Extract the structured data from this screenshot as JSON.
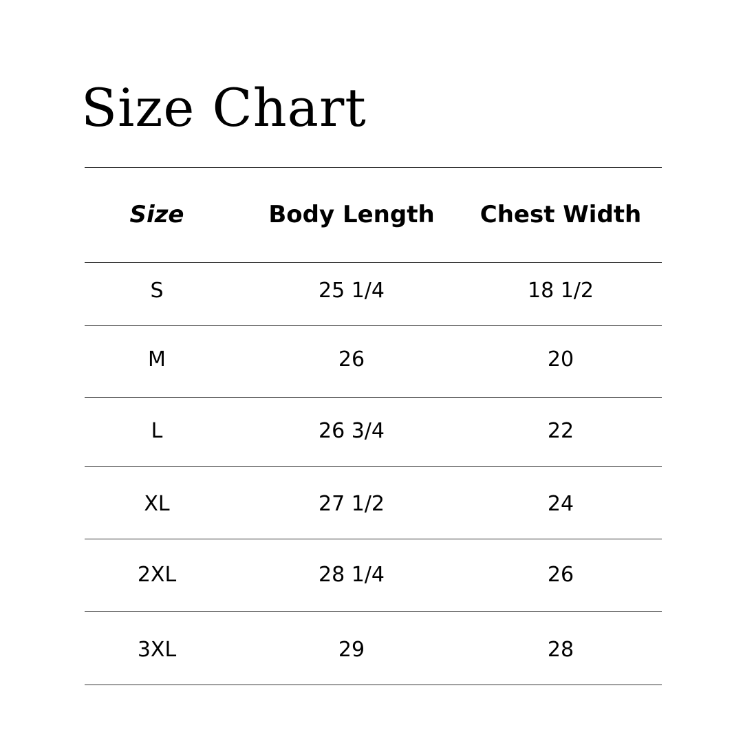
{
  "title": "Size Chart",
  "table": {
    "headers": [
      "Size",
      "Body Length",
      "Chest Width"
    ],
    "rows": [
      [
        "S",
        "25 1/4",
        "18 1/2"
      ],
      [
        "M",
        "26",
        "20"
      ],
      [
        "L",
        "26 3/4",
        "22"
      ],
      [
        "XL",
        "27 1/2",
        "24"
      ],
      [
        "2XL",
        "28 1/4",
        "26"
      ],
      [
        "3XL",
        "29",
        "28"
      ]
    ]
  }
}
